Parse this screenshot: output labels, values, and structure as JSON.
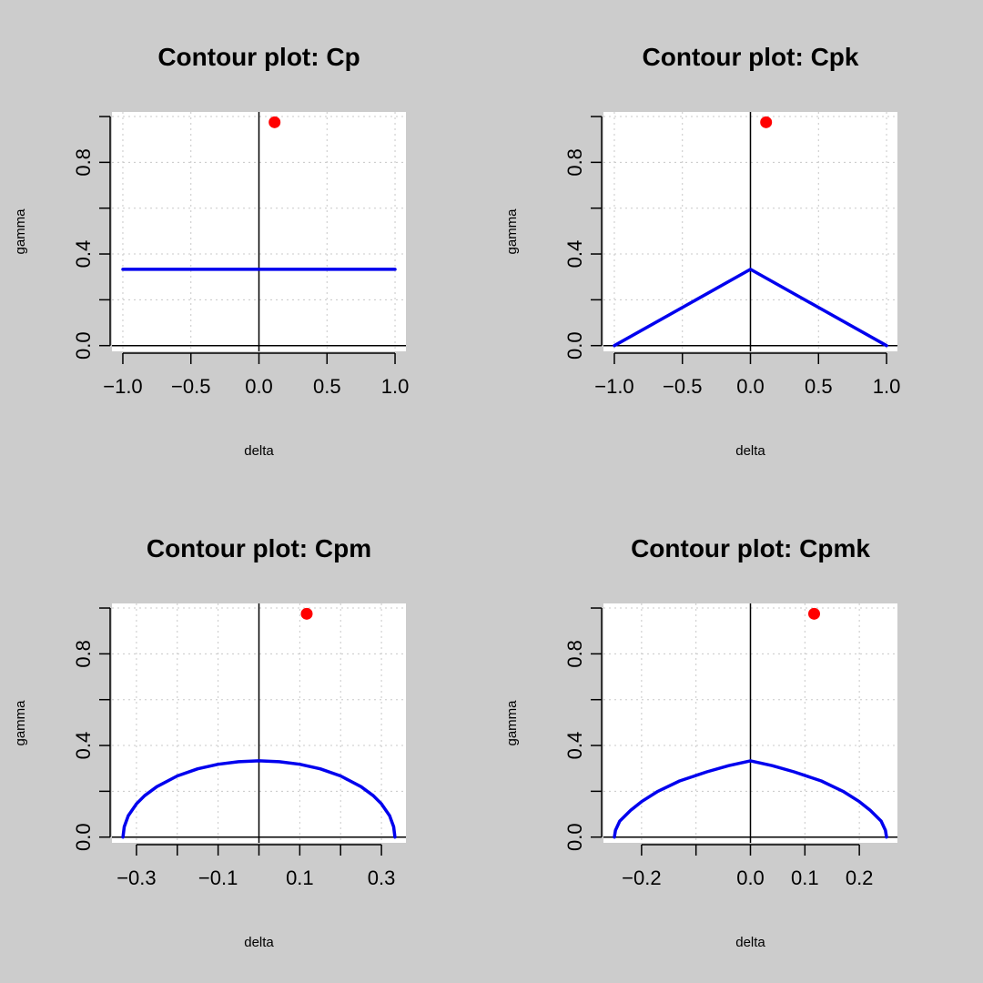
{
  "page": {
    "background": "#cccccc"
  },
  "style": {
    "curve_color": "#0000ee",
    "point_color": "#ff0000",
    "grid_color": "#c8c8c8"
  },
  "chart_data": [
    {
      "type": "line",
      "title": "Contour plot: Cp",
      "xlabel": "delta",
      "ylabel": "gamma",
      "xlim": [
        -1.08,
        1.08
      ],
      "ylim": [
        -0.025,
        1.02
      ],
      "grid": true,
      "xticks": [
        -1.0,
        -0.5,
        0.0,
        0.5,
        1.0
      ],
      "xtick_labels": [
        "−1.0",
        "−0.5",
        "0.0",
        "0.5",
        "1.0"
      ],
      "yticks": [
        0.0,
        0.2,
        0.4,
        0.6,
        0.8,
        1.0
      ],
      "ytick_labels": [
        "0.0",
        "",
        "0.4",
        "",
        "0.8",
        ""
      ],
      "xgrid": [
        -1.0,
        -0.5,
        0.0,
        0.5,
        1.0
      ],
      "ygrid": [
        0.0,
        0.2,
        0.4,
        0.6,
        0.8,
        1.0
      ],
      "series": [
        {
          "x": [
            -1.0,
            -0.5,
            0.0,
            0.5,
            1.0
          ],
          "y": [
            0.333,
            0.333,
            0.333,
            0.333,
            0.333
          ]
        }
      ],
      "point": {
        "x": 0.115,
        "y": 0.975
      }
    },
    {
      "type": "line",
      "title": "Contour plot: Cpk",
      "xlabel": "delta",
      "ylabel": "gamma",
      "xlim": [
        -1.08,
        1.08
      ],
      "ylim": [
        -0.025,
        1.02
      ],
      "grid": true,
      "xticks": [
        -1.0,
        -0.5,
        0.0,
        0.5,
        1.0
      ],
      "xtick_labels": [
        "−1.0",
        "−0.5",
        "0.0",
        "0.5",
        "1.0"
      ],
      "yticks": [
        0.0,
        0.2,
        0.4,
        0.6,
        0.8,
        1.0
      ],
      "ytick_labels": [
        "0.0",
        "",
        "0.4",
        "",
        "0.8",
        ""
      ],
      "xgrid": [
        -1.0,
        -0.5,
        0.0,
        0.5,
        1.0
      ],
      "ygrid": [
        0.0,
        0.2,
        0.4,
        0.6,
        0.8,
        1.0
      ],
      "series": [
        {
          "x": [
            -1.0,
            0.0,
            1.0
          ],
          "y": [
            0.0,
            0.333,
            0.0
          ]
        }
      ],
      "point": {
        "x": 0.115,
        "y": 0.975
      }
    },
    {
      "type": "line",
      "title": "Contour plot: Cpm",
      "xlabel": "delta",
      "ylabel": "gamma",
      "xlim": [
        -0.36,
        0.36
      ],
      "ylim": [
        -0.025,
        1.02
      ],
      "grid": true,
      "xticks": [
        -0.3,
        -0.2,
        -0.1,
        0.0,
        0.1,
        0.2,
        0.3
      ],
      "xtick_labels": [
        "−0.3",
        "",
        "−0.1",
        "",
        "0.1",
        "",
        "0.3"
      ],
      "yticks": [
        0.0,
        0.2,
        0.4,
        0.6,
        0.8,
        1.0
      ],
      "ytick_labels": [
        "0.0",
        "",
        "0.4",
        "",
        "0.8",
        ""
      ],
      "xgrid": [
        -0.3,
        -0.2,
        -0.1,
        0.0,
        0.1,
        0.2,
        0.3
      ],
      "ygrid": [
        0.0,
        0.2,
        0.4,
        0.6,
        0.8,
        1.0
      ],
      "series": [
        {
          "x": [
            -0.333,
            -0.33,
            -0.32,
            -0.3,
            -0.28,
            -0.25,
            -0.2,
            -0.15,
            -0.1,
            -0.05,
            0.0,
            0.05,
            0.1,
            0.15,
            0.2,
            0.25,
            0.28,
            0.3,
            0.32,
            0.33,
            0.333
          ],
          "y": [
            0.0,
            0.045,
            0.093,
            0.145,
            0.181,
            0.22,
            0.267,
            0.298,
            0.318,
            0.329,
            0.333,
            0.329,
            0.318,
            0.298,
            0.267,
            0.22,
            0.181,
            0.145,
            0.093,
            0.045,
            0.0
          ]
        }
      ],
      "point": {
        "x": 0.117,
        "y": 0.975
      }
    },
    {
      "type": "line",
      "title": "Contour plot: Cpmk",
      "xlabel": "delta",
      "ylabel": "gamma",
      "xlim": [
        -0.27,
        0.27
      ],
      "ylim": [
        -0.025,
        1.02
      ],
      "grid": true,
      "xticks": [
        -0.2,
        -0.1,
        0.0,
        0.1,
        0.2
      ],
      "xtick_labels": [
        "−0.2",
        "",
        "0.0",
        "0.1",
        "0.2"
      ],
      "yticks": [
        0.0,
        0.2,
        0.4,
        0.6,
        0.8,
        1.0
      ],
      "ytick_labels": [
        "0.0",
        "",
        "0.4",
        "",
        "0.8",
        ""
      ],
      "xgrid": [
        -0.2,
        -0.1,
        0.0,
        0.1,
        0.2
      ],
      "ygrid": [
        0.0,
        0.2,
        0.4,
        0.6,
        0.8,
        1.0
      ],
      "series": [
        {
          "x": [
            -0.25,
            -0.248,
            -0.24,
            -0.22,
            -0.2,
            -0.17,
            -0.13,
            -0.08,
            -0.04,
            0.0,
            0.04,
            0.08,
            0.13,
            0.17,
            0.2,
            0.22,
            0.24,
            0.248,
            0.25
          ],
          "y": [
            0.0,
            0.03,
            0.07,
            0.117,
            0.155,
            0.2,
            0.245,
            0.285,
            0.312,
            0.333,
            0.312,
            0.285,
            0.245,
            0.2,
            0.155,
            0.117,
            0.07,
            0.03,
            0.0
          ]
        }
      ],
      "point": {
        "x": 0.117,
        "y": 0.975
      }
    }
  ]
}
